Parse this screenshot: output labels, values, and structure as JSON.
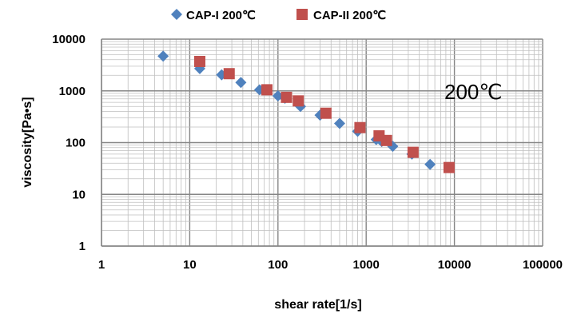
{
  "chart_data": {
    "type": "scatter",
    "xscale": "log",
    "yscale": "log",
    "xlim": [
      1,
      100000
    ],
    "ylim": [
      1,
      10000
    ],
    "xlabel": "shear rate[1/s]",
    "ylabel": "viscosity[Pa•s]",
    "x_ticks": [
      "1",
      "10",
      "100",
      "1000",
      "10000",
      "100000"
    ],
    "y_ticks": [
      "1",
      "10",
      "100",
      "1000",
      "10000"
    ],
    "grid": true,
    "legend_position": "top",
    "annotation": "200℃",
    "series": [
      {
        "name": "CAP-I 200℃",
        "marker": "diamond",
        "color": "#4F81BD",
        "points": [
          [
            5,
            4700
          ],
          [
            13,
            2700
          ],
          [
            23,
            2050
          ],
          [
            38,
            1450
          ],
          [
            62,
            1050
          ],
          [
            100,
            800
          ],
          [
            120,
            720
          ],
          [
            180,
            500
          ],
          [
            300,
            340
          ],
          [
            500,
            235
          ],
          [
            800,
            165
          ],
          [
            1300,
            115
          ],
          [
            1500,
            105
          ],
          [
            2000,
            85
          ],
          [
            3300,
            60
          ],
          [
            5300,
            38
          ]
        ]
      },
      {
        "name": "CAP-II 200℃",
        "marker": "square",
        "color": "#C0504D",
        "points": [
          [
            13,
            3700
          ],
          [
            28,
            2150
          ],
          [
            75,
            1050
          ],
          [
            125,
            750
          ],
          [
            170,
            640
          ],
          [
            350,
            370
          ],
          [
            850,
            195
          ],
          [
            1400,
            135
          ],
          [
            1700,
            110
          ],
          [
            3400,
            65
          ],
          [
            8700,
            33
          ]
        ]
      }
    ]
  }
}
